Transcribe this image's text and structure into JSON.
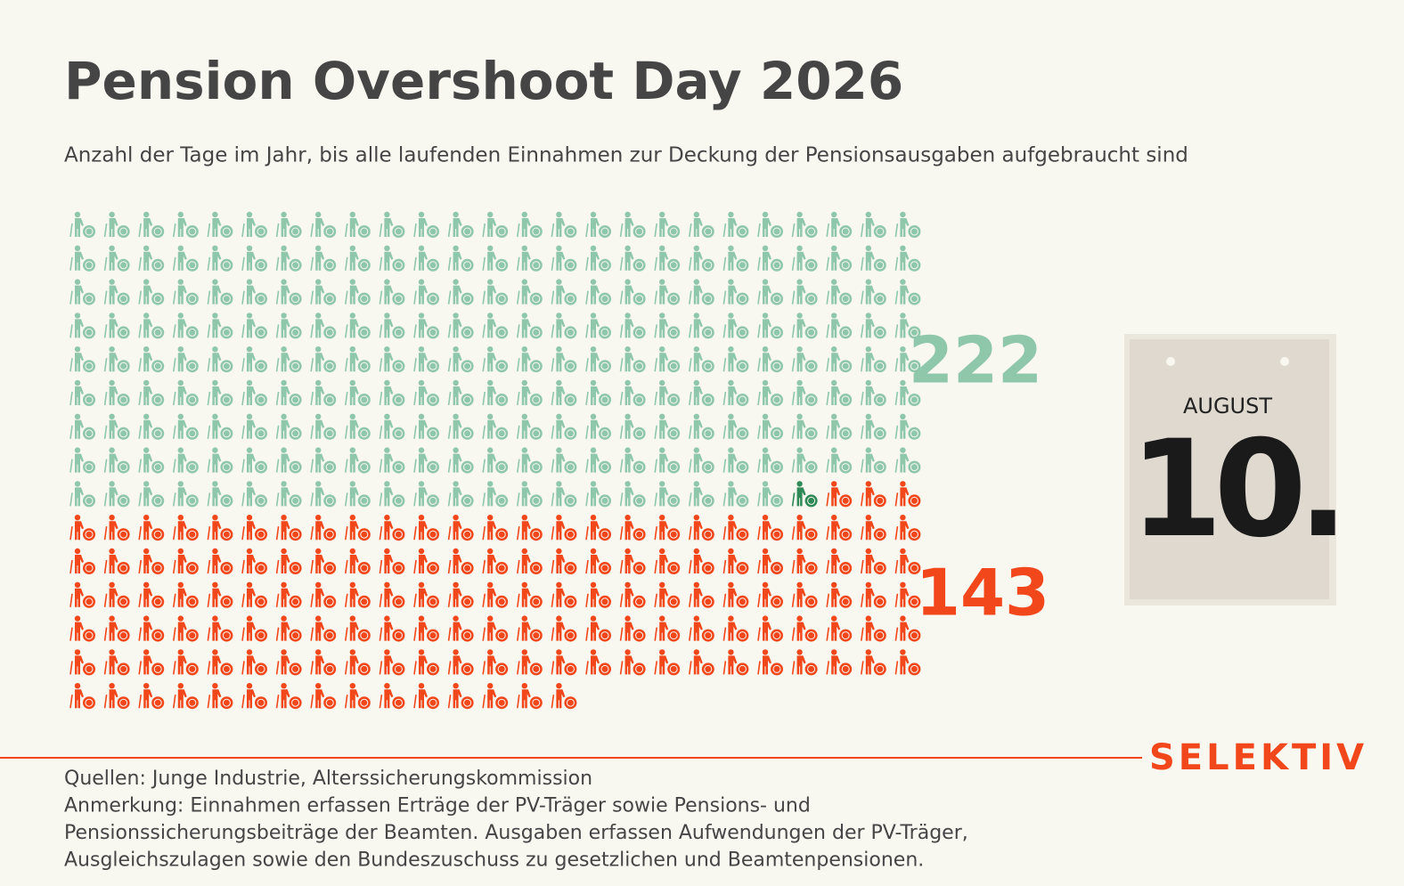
{
  "chart_data": {
    "type": "waffle",
    "title": "Pension Overshoot Day 2026",
    "subtitle": "Anzahl der Tage im Jahr, bis alle laufenden Einnahmen zur Deckung der Pensionsausgaben aufgebraucht sind",
    "values": [
      222,
      143
    ],
    "colors": [
      "#8fc7ab",
      "#f2471a"
    ],
    "highlight_color": "#2f8a57",
    "calendar": {
      "month": "AUGUST",
      "day": "10."
    },
    "brand": "SELEKTIV",
    "footer": [
      "Quellen: Junge Industrie, Alterssicherungskommission",
      "Anmerkung: Einnahmen erfassen Erträge der PV-Träger sowie Pensions- und",
      "Pensionssicherungsbeiträge der Beamten. Ausgaben erfassen Aufwendungen der PV-Träger,",
      "Ausgleichszulagen sowie den Bundeszuschuss zu gesetzlichen und Beamtenpensionen."
    ]
  }
}
